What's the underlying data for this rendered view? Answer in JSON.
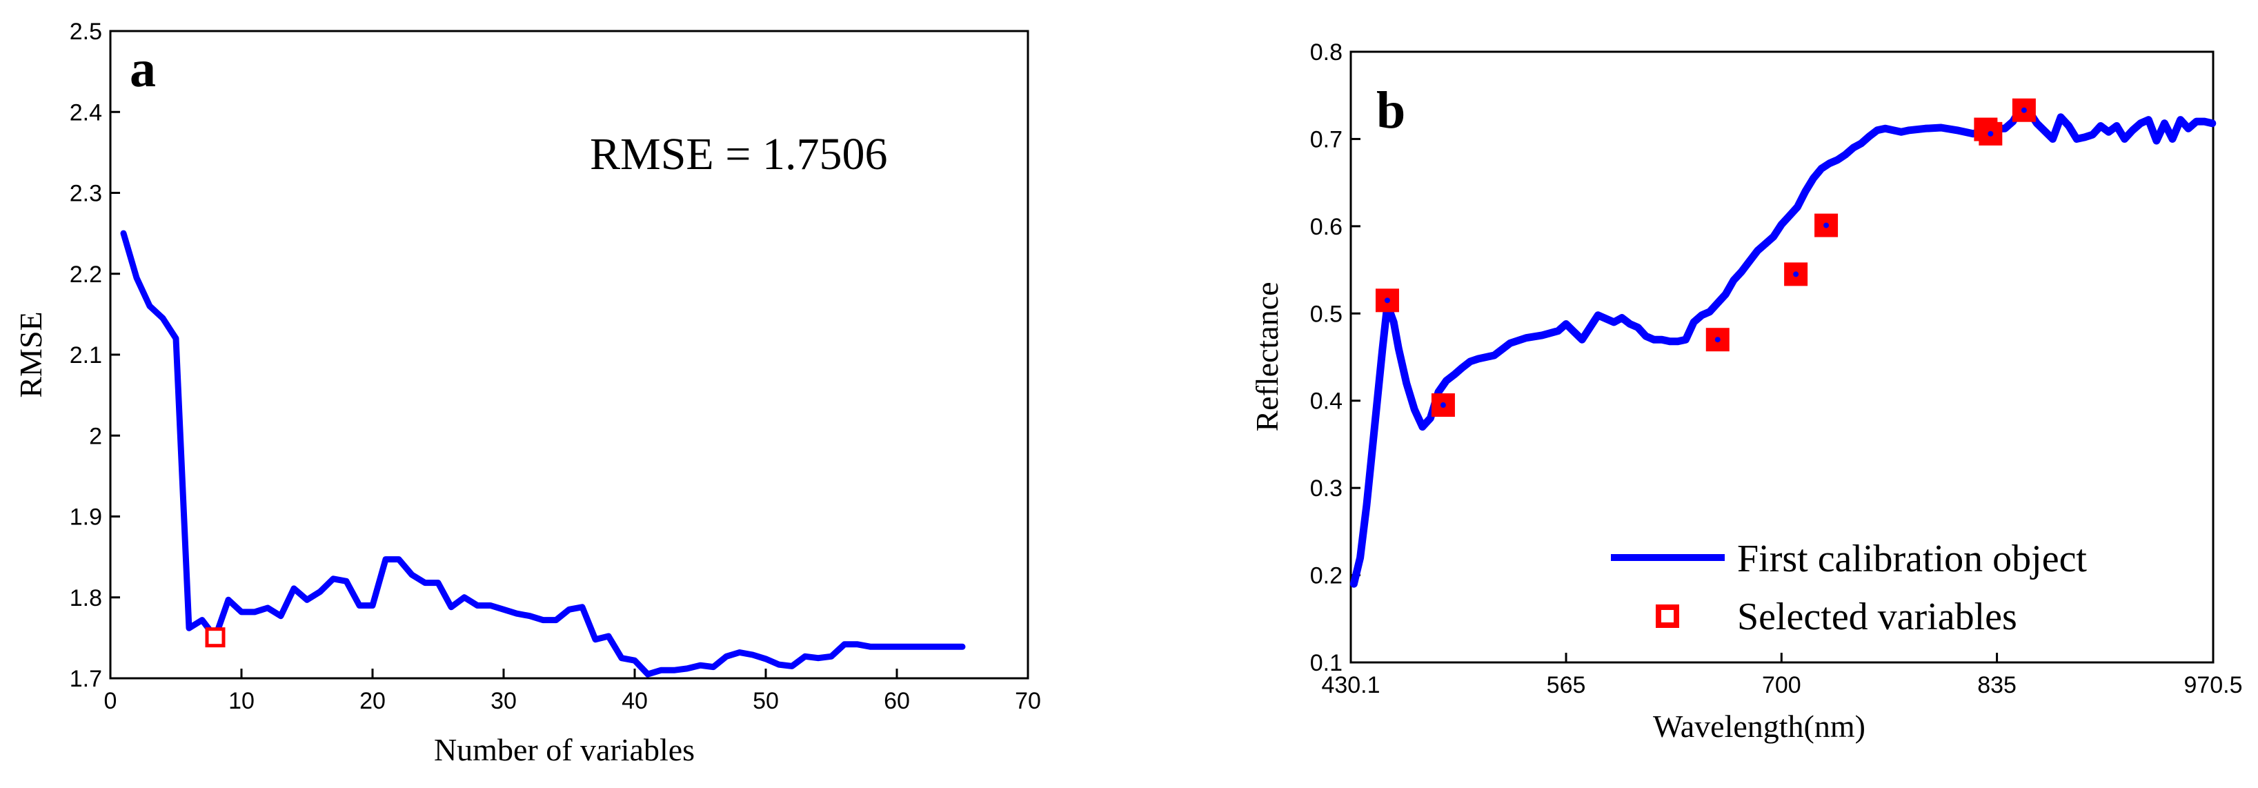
{
  "chart_data": [
    {
      "type": "line",
      "panel_label": "a",
      "xlabel": "Number of variables",
      "ylabel": "RMSE",
      "xlim": [
        0,
        70
      ],
      "ylim": [
        1.7,
        2.5
      ],
      "xticks": [
        0,
        10,
        20,
        30,
        40,
        50,
        60,
        70
      ],
      "yticks": [
        1.7,
        1.8,
        1.9,
        2,
        2.1,
        2.2,
        2.3,
        2.4,
        2.5
      ],
      "annotation": "RMSE = 1.7506",
      "grid": false,
      "colors": {
        "line": "#0000ff",
        "marker": "#ff0000"
      },
      "series": [
        {
          "x": [
            1,
            2,
            3,
            4,
            5,
            6,
            7,
            8,
            9,
            10,
            11,
            12,
            13,
            14,
            15,
            16,
            17,
            18,
            19,
            20,
            21,
            22,
            23,
            24,
            25,
            26,
            27,
            28,
            29,
            30,
            31,
            32,
            33,
            34,
            35,
            36,
            37,
            38,
            39,
            40,
            41,
            42,
            43,
            44,
            45,
            46,
            47,
            48,
            49,
            50,
            51,
            52,
            53,
            54,
            55,
            56,
            57,
            58,
            59,
            60,
            61,
            62,
            63,
            64,
            65
          ],
          "y": [
            2.25,
            2.195,
            2.16,
            2.145,
            2.12,
            1.762,
            1.772,
            1.7506,
            1.797,
            1.782,
            1.782,
            1.787,
            1.777,
            1.811,
            1.797,
            1.807,
            1.823,
            1.82,
            1.79,
            1.79,
            1.847,
            1.847,
            1.828,
            1.818,
            1.818,
            1.788,
            1.8,
            1.79,
            1.79,
            1.785,
            1.78,
            1.777,
            1.772,
            1.772,
            1.785,
            1.788,
            1.748,
            1.752,
            1.725,
            1.722,
            1.705,
            1.71,
            1.71,
            1.712,
            1.716,
            1.714,
            1.727,
            1.732,
            1.729,
            1.724,
            1.717,
            1.715,
            1.727,
            1.725,
            1.727,
            1.742,
            1.742,
            1.739,
            1.739,
            1.739,
            1.739,
            1.739,
            1.739,
            1.739,
            1.739
          ]
        }
      ],
      "highlight": {
        "x": 8,
        "y": 1.7506
      }
    },
    {
      "type": "line",
      "panel_label": "b",
      "xlabel": "Wavelength(nm)",
      "ylabel": "Reflectance",
      "xlim": [
        430.1,
        970.5
      ],
      "ylim": [
        0.1,
        0.8
      ],
      "xtick_labels": [
        "430.1",
        "565",
        "700",
        "835",
        "970.5"
      ],
      "xtick_values": [
        430.1,
        565,
        700,
        835,
        970.5
      ],
      "yticks": [
        0.1,
        0.2,
        0.3,
        0.4,
        0.5,
        0.6,
        0.7,
        0.8
      ],
      "legend": {
        "placement": "bottom-right",
        "entries": [
          "First calibration object",
          "Selected variables"
        ]
      },
      "grid": false,
      "colors": {
        "line": "#0000ff",
        "marker": "#ff0000",
        "marker_dot": "#0000ff"
      },
      "series": [
        {
          "name": "First calibration object",
          "x": [
            432,
            436,
            440,
            445,
            450,
            453,
            457,
            460,
            465,
            470,
            475,
            480,
            485,
            490,
            495,
            500,
            505,
            510,
            520,
            530,
            540,
            550,
            560,
            565,
            575,
            585,
            595,
            600,
            605,
            610,
            615,
            620,
            625,
            630,
            635,
            640,
            645,
            650,
            655,
            660,
            665,
            670,
            675,
            680,
            685,
            690,
            695,
            700,
            705,
            710,
            715,
            720,
            725,
            730,
            735,
            740,
            745,
            750,
            755,
            760,
            765,
            770,
            775,
            780,
            790,
            800,
            810,
            820,
            825,
            830,
            835,
            840,
            845,
            850,
            855,
            860,
            870,
            875,
            880,
            885,
            890,
            895,
            900,
            905,
            910,
            915,
            920,
            925,
            930,
            935,
            940,
            945,
            950,
            955,
            960,
            965,
            970
          ],
          "y": [
            0.19,
            0.22,
            0.28,
            0.37,
            0.46,
            0.51,
            0.49,
            0.46,
            0.42,
            0.39,
            0.37,
            0.38,
            0.41,
            0.423,
            0.43,
            0.438,
            0.445,
            0.448,
            0.452,
            0.466,
            0.472,
            0.475,
            0.48,
            0.488,
            0.47,
            0.498,
            0.49,
            0.495,
            0.488,
            0.484,
            0.474,
            0.47,
            0.47,
            0.468,
            0.468,
            0.47,
            0.49,
            0.498,
            0.502,
            0.512,
            0.522,
            0.538,
            0.548,
            0.56,
            0.572,
            0.58,
            0.588,
            0.602,
            0.612,
            0.622,
            0.64,
            0.655,
            0.666,
            0.672,
            0.676,
            0.682,
            0.69,
            0.695,
            0.703,
            0.71,
            0.712,
            0.71,
            0.708,
            0.71,
            0.712,
            0.713,
            0.71,
            0.706,
            0.708,
            0.708,
            0.712,
            0.712,
            0.72,
            0.735,
            0.732,
            0.718,
            0.7,
            0.725,
            0.715,
            0.7,
            0.702,
            0.705,
            0.715,
            0.708,
            0.715,
            0.7,
            0.71,
            0.718,
            0.722,
            0.698,
            0.718,
            0.7,
            0.722,
            0.712,
            0.72,
            0.72,
            0.718
          ]
        },
        {
          "name": "Selected variables",
          "x": [
            453,
            488,
            660,
            709,
            728,
            828,
            831,
            852
          ],
          "y": [
            0.515,
            0.395,
            0.47,
            0.545,
            0.601,
            0.711,
            0.706,
            0.733
          ]
        }
      ]
    }
  ]
}
